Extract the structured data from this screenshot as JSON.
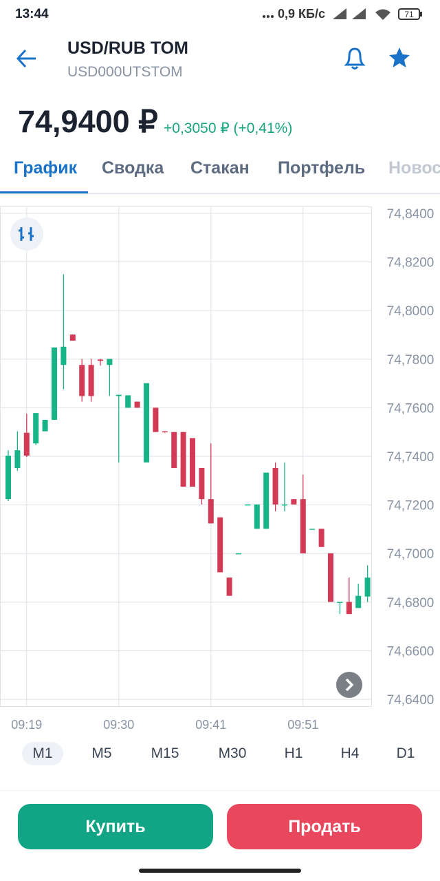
{
  "status": {
    "time": "13:44",
    "network": "0,9 КБ/с",
    "battery": "71"
  },
  "header": {
    "title": "USD/RUB TOM",
    "ticker": "USD000UTSTOM"
  },
  "price": {
    "value": "74,9400 ₽",
    "change": "+0,3050 ₽ (+0,41%)"
  },
  "tabs": [
    "График",
    "Сводка",
    "Стакан",
    "Портфель",
    "Новости"
  ],
  "chart": {
    "type": "candlestick",
    "up_color": "#17b488",
    "down_color": "#d23a55",
    "grid": true,
    "ylim": [
      74.6372,
      74.8428
    ],
    "yticks": [
      {
        "value": 74.84,
        "label": "74,8400"
      },
      {
        "value": 74.82,
        "label": "74,8200"
      },
      {
        "value": 74.8,
        "label": "74,8000"
      },
      {
        "value": 74.78,
        "label": "74,7800"
      },
      {
        "value": 74.76,
        "label": "74,7600"
      },
      {
        "value": 74.74,
        "label": "74,7400"
      },
      {
        "value": 74.72,
        "label": "74,7200"
      },
      {
        "value": 74.7,
        "label": "74,7000"
      },
      {
        "value": 74.68,
        "label": "74,6800"
      },
      {
        "value": 74.66,
        "label": "74,6600"
      },
      {
        "value": 74.64,
        "label": "74,6400"
      }
    ],
    "categories": [
      null,
      null,
      "09:19",
      null,
      null,
      null,
      null,
      null,
      null,
      null,
      null,
      null,
      "09:30",
      null,
      null,
      null,
      null,
      null,
      null,
      null,
      null,
      null,
      "09:41",
      null,
      null,
      null,
      null,
      null,
      null,
      null,
      null,
      null,
      "09:51",
      null,
      null,
      null,
      null,
      null,
      null,
      null
    ],
    "candles": [
      {
        "open": 74.7224,
        "high": 74.7425,
        "low": 74.7216,
        "close": 74.7403
      },
      {
        "open": 74.7352,
        "high": 74.7503,
        "low": 74.7341,
        "close": 74.7425
      },
      {
        "open": 74.7497,
        "high": 74.7575,
        "low": 74.7397,
        "close": 74.7403
      },
      {
        "open": 74.7453,
        "high": 74.7578,
        "low": 74.7447,
        "close": 74.7578
      },
      {
        "open": 74.7503,
        "high": 74.755,
        "low": 74.7503,
        "close": 74.755
      },
      {
        "open": 74.755,
        "high": 74.7848,
        "low": 74.755,
        "close": 74.7848
      },
      {
        "open": 74.7776,
        "high": 74.8149,
        "low": 74.7676,
        "close": 74.7851
      },
      {
        "open": 74.7901,
        "high": 74.7901,
        "low": 74.7876,
        "close": 74.7876
      },
      {
        "open": 74.7776,
        "high": 74.7801,
        "low": 74.7625,
        "close": 74.7648
      },
      {
        "open": 74.7776,
        "high": 74.7801,
        "low": 74.7625,
        "close": 74.7648
      },
      {
        "open": 74.7798,
        "high": 74.7801,
        "low": 74.7773,
        "close": 74.7793
      },
      {
        "open": 74.7776,
        "high": 74.7801,
        "low": 74.7648,
        "close": 74.7801
      },
      {
        "open": 74.7648,
        "high": 74.7653,
        "low": 74.7375,
        "close": 74.7653
      },
      {
        "open": 74.76,
        "high": 74.7651,
        "low": 74.76,
        "close": 74.7651
      },
      {
        "open": 74.7625,
        "high": 74.7625,
        "low": 74.76,
        "close": 74.76
      },
      {
        "open": 74.7375,
        "high": 74.7701,
        "low": 74.7375,
        "close": 74.7701
      },
      {
        "open": 74.76,
        "high": 74.76,
        "low": 74.75,
        "close": 74.75
      },
      {
        "open": 74.7503,
        "high": 74.7503,
        "low": 74.7497,
        "close": 74.75
      },
      {
        "open": 74.75,
        "high": 74.75,
        "low": 74.7352,
        "close": 74.7352
      },
      {
        "open": 74.75,
        "high": 74.75,
        "low": 74.7275,
        "close": 74.7275
      },
      {
        "open": 74.7475,
        "high": 74.7475,
        "low": 74.7275,
        "close": 74.7275
      },
      {
        "open": 74.7352,
        "high": 74.7352,
        "low": 74.7202,
        "close": 74.7224
      },
      {
        "open": 74.7224,
        "high": 74.7453,
        "low": 74.7124,
        "close": 74.7124
      },
      {
        "open": 74.7149,
        "high": 74.7149,
        "low": 74.6923,
        "close": 74.6923
      },
      {
        "open": 74.6901,
        "high": 74.6901,
        "low": 74.6826,
        "close": 74.6826
      },
      {
        "open": 74.7001,
        "high": 74.7001,
        "low": 74.7001,
        "close": 74.7001
      },
      {
        "open": 74.7202,
        "high": 74.7202,
        "low": 74.7202,
        "close": 74.7202
      },
      {
        "open": 74.7102,
        "high": 74.7202,
        "low": 74.7102,
        "close": 74.7202
      },
      {
        "open": 74.7102,
        "high": 74.7333,
        "low": 74.7102,
        "close": 74.7333
      },
      {
        "open": 74.7352,
        "high": 74.7375,
        "low": 74.7174,
        "close": 74.7202
      },
      {
        "open": 74.7202,
        "high": 74.7375,
        "low": 74.7174,
        "close": 74.7202
      },
      {
        "open": 74.7224,
        "high": 74.7224,
        "low": 74.7202,
        "close": 74.7202
      },
      {
        "open": 74.7224,
        "high": 74.7325,
        "low": 74.7001,
        "close": 74.7001
      },
      {
        "open": 74.7102,
        "high": 74.7102,
        "low": 74.7102,
        "close": 74.7102
      },
      {
        "open": 74.7102,
        "high": 74.7102,
        "low": 74.7027,
        "close": 74.7027
      },
      {
        "open": 74.7001,
        "high": 74.7001,
        "low": 74.6801,
        "close": 74.6801
      },
      {
        "open": 74.6801,
        "high": 74.6801,
        "low": 74.6751,
        "close": 74.6801
      },
      {
        "open": 74.6801,
        "high": 74.6901,
        "low": 74.6751,
        "close": 74.6751
      },
      {
        "open": 74.6776,
        "high": 74.6876,
        "low": 74.6776,
        "close": 74.6826
      },
      {
        "open": 74.6823,
        "high": 74.6951,
        "low": 74.6801,
        "close": 74.6901
      }
    ]
  },
  "timeframes": [
    "M1",
    "M5",
    "M15",
    "M30",
    "H1",
    "H4",
    "D1"
  ],
  "buttons": {
    "buy": "Купить",
    "sell": "Продать"
  }
}
